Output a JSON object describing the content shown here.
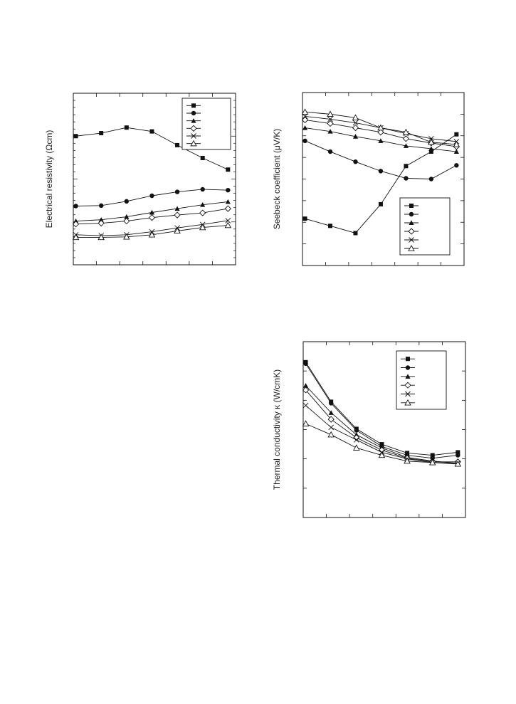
{
  "chart_data": [
    {
      "id": "resistivity",
      "type": "line",
      "title": "",
      "ylabel": "Electrical resistivity (Ωcm)",
      "xlabel": "",
      "yscale": "log",
      "grid": false,
      "legend_position": "top-right",
      "x": [
        1,
        2,
        3,
        4,
        5,
        6,
        7
      ],
      "xlim": [
        0.9,
        7.3
      ],
      "ylim": [
        0.5,
        0.9
      ],
      "series": [
        {
          "marker": "filled-square",
          "values": [
            0.8,
            0.807,
            0.82,
            0.811,
            0.779,
            0.749,
            0.722
          ]
        },
        {
          "marker": "filled-circle",
          "values": [
            0.637,
            0.638,
            0.648,
            0.661,
            0.67,
            0.676,
            0.674
          ]
        },
        {
          "marker": "filled-triangle",
          "values": [
            0.602,
            0.605,
            0.612,
            0.622,
            0.631,
            0.64,
            0.647
          ]
        },
        {
          "marker": "open-diamond",
          "values": [
            0.595,
            0.597,
            0.602,
            0.61,
            0.616,
            0.621,
            0.631
          ]
        },
        {
          "marker": "cross",
          "values": [
            0.57,
            0.568,
            0.57,
            0.577,
            0.586,
            0.594,
            0.603
          ]
        },
        {
          "marker": "open-triangle",
          "values": [
            0.564,
            0.564,
            0.565,
            0.57,
            0.579,
            0.587,
            0.592
          ]
        }
      ]
    },
    {
      "id": "seebeck",
      "type": "line",
      "title": "",
      "ylabel": "Seebeck coefficient (μV/K)",
      "xlabel": "",
      "grid": false,
      "legend_position": "bottom-right",
      "x": [
        1,
        2,
        3,
        4,
        5,
        6,
        7
      ],
      "xlim": [
        0.9,
        7.3
      ],
      "ylim": [
        0,
        24
      ],
      "series": [
        {
          "marker": "filled-square",
          "values": [
            6.5,
            5.5,
            4.5,
            8.5,
            13.8,
            15.8,
            18.2
          ]
        },
        {
          "marker": "filled-circle",
          "values": [
            17.3,
            15.8,
            14.4,
            13.1,
            12.1,
            12.0,
            13.9
          ]
        },
        {
          "marker": "filled-triangle",
          "values": [
            19.1,
            18.6,
            17.9,
            17.3,
            16.6,
            16.2,
            15.8
          ]
        },
        {
          "marker": "open-diamond",
          "values": [
            20.2,
            19.7,
            19.1,
            18.5,
            17.6,
            17.0,
            16.5
          ]
        },
        {
          "marker": "cross",
          "values": [
            20.7,
            20.3,
            19.8,
            19.1,
            18.3,
            17.6,
            17.2
          ]
        },
        {
          "marker": "open-triangle",
          "values": [
            21.3,
            21.0,
            20.5,
            19.1,
            18.5,
            17.1,
            16.8
          ]
        }
      ]
    },
    {
      "id": "thermal",
      "type": "line",
      "title": "",
      "ylabel": "Thermal conductivity κ (W/cmK)",
      "xlabel": "",
      "grid": false,
      "legend_position": "top-right",
      "x": [
        1,
        2,
        3,
        4,
        5,
        6,
        7
      ],
      "xlim": [
        0.9,
        7.3
      ],
      "ylim": [
        0,
        1.2
      ],
      "series": [
        {
          "marker": "filled-square",
          "values": [
            1.06,
            0.79,
            0.605,
            0.5,
            0.44,
            0.425,
            0.445
          ]
        },
        {
          "marker": "filled-circle",
          "values": [
            1.05,
            0.78,
            0.595,
            0.485,
            0.425,
            0.405,
            0.425
          ]
        },
        {
          "marker": "filled-triangle",
          "values": [
            0.9,
            0.715,
            0.565,
            0.475,
            0.41,
            0.385,
            0.37
          ]
        },
        {
          "marker": "open-diamond",
          "values": [
            0.87,
            0.67,
            0.545,
            0.46,
            0.405,
            0.38,
            0.38
          ]
        },
        {
          "marker": "cross",
          "values": [
            0.765,
            0.615,
            0.53,
            0.445,
            0.4,
            0.375,
            0.37
          ]
        },
        {
          "marker": "open-triangle",
          "values": [
            0.64,
            0.565,
            0.475,
            0.425,
            0.385,
            0.375,
            0.365
          ]
        }
      ]
    }
  ]
}
